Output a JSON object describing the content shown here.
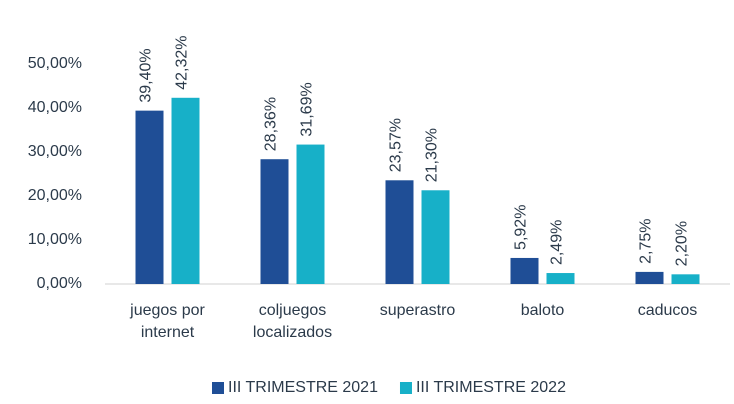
{
  "chart_data": {
    "type": "bar",
    "categories": [
      "juegos por internet",
      "coljuegos localizados",
      "superastro",
      "baloto",
      "caducos"
    ],
    "series": [
      {
        "name": "III TRIMESTRE 2021",
        "color": "#1f4e96",
        "values": [
          39.4,
          28.36,
          23.57,
          5.92,
          2.75
        ],
        "value_labels": [
          "39,40%",
          "28,36%",
          "23,57%",
          "5,92%",
          "2,75%"
        ]
      },
      {
        "name": "III TRIMESTRE 2022",
        "color": "#17b0c8",
        "values": [
          42.32,
          31.69,
          21.3,
          2.49,
          2.2
        ],
        "value_labels": [
          "42,32%",
          "31,69%",
          "21,30%",
          "2,49%",
          "2,20%"
        ]
      }
    ],
    "ylim": [
      0,
      50
    ],
    "yticks": [
      {
        "value": 0,
        "label": "0,00%"
      },
      {
        "value": 10,
        "label": "10,00%"
      },
      {
        "value": 20,
        "label": "20,00%"
      },
      {
        "value": 30,
        "label": "30,00%"
      },
      {
        "value": 40,
        "label": "40,00%"
      },
      {
        "value": 50,
        "label": "50,00%"
      }
    ],
    "legend": "bottom"
  }
}
